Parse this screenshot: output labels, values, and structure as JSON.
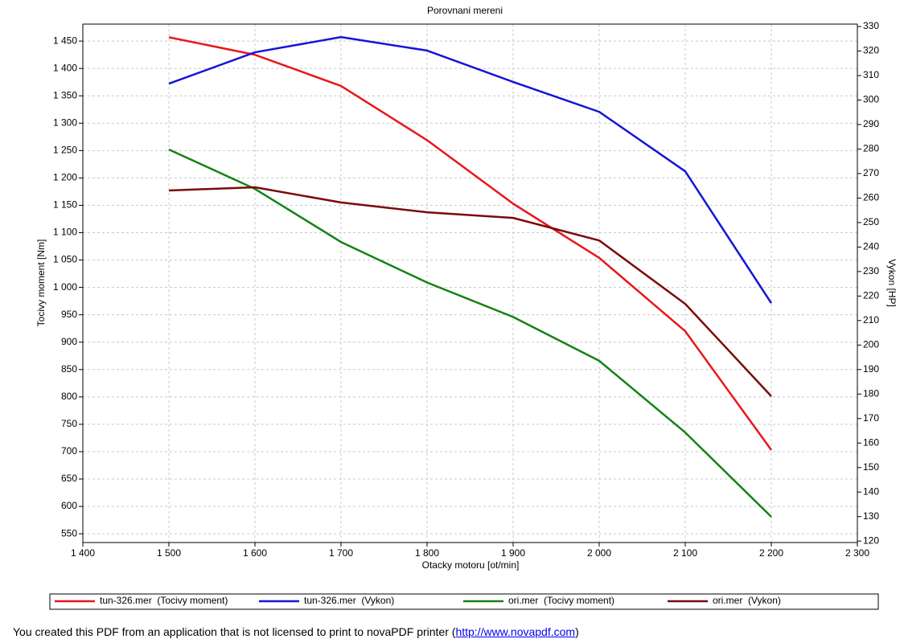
{
  "chart_data": {
    "type": "line",
    "title": "Porovnani mereni",
    "x_label": "Otacky motoru [ot/min]",
    "y_label": "Tocivy moment [Nm]",
    "y2_label": "Vykon [HP]",
    "x": [
      1500,
      1600,
      1700,
      1800,
      1900,
      2000,
      2100,
      2200
    ],
    "xlim": [
      1400,
      2300
    ],
    "xticks": [
      {
        "value": 1400,
        "label": "1 400"
      },
      {
        "value": 1500,
        "label": "1 500"
      },
      {
        "value": 1600,
        "label": "1 600"
      },
      {
        "value": 1700,
        "label": "1 700"
      },
      {
        "value": 1800,
        "label": "1 800"
      },
      {
        "value": 1900,
        "label": "1 900"
      },
      {
        "value": 2000,
        "label": "2 000"
      },
      {
        "value": 2100,
        "label": "2 100"
      },
      {
        "value": 2200,
        "label": "2 200"
      },
      {
        "value": 2300,
        "label": "2 300"
      }
    ],
    "ylim": [
      534,
      1481
    ],
    "yticks": [
      550,
      600,
      650,
      700,
      750,
      800,
      850,
      900,
      950,
      {
        "value": 1000,
        "label": "1 000"
      },
      {
        "value": 1050,
        "label": "1 050"
      },
      {
        "value": 1100,
        "label": "1 100"
      },
      {
        "value": 1150,
        "label": "1 150"
      },
      {
        "value": 1200,
        "label": "1 200"
      },
      {
        "value": 1250,
        "label": "1 250"
      },
      {
        "value": 1300,
        "label": "1 300"
      },
      {
        "value": 1350,
        "label": "1 350"
      },
      {
        "value": 1400,
        "label": "1 400"
      },
      {
        "value": 1450,
        "label": "1 450"
      }
    ],
    "y2lim": [
      119.4,
      331
    ],
    "y2ticks": [
      120,
      130,
      140,
      150,
      160,
      170,
      180,
      190,
      200,
      210,
      220,
      230,
      240,
      250,
      260,
      270,
      280,
      290,
      300,
      310,
      320,
      330
    ],
    "grid": true,
    "series": [
      {
        "name": "tun-326.mer  (Tocivy moment)",
        "color": "#e8171c",
        "values": [
          1457,
          1425,
          1368,
          1269,
          1153,
          1054,
          920,
          703
        ]
      },
      {
        "name": "tun-326.mer  (Vykon)",
        "color": "#1515d8",
        "axis": "y2",
        "values": [
          306.7,
          319.5,
          325.7,
          320.2,
          307.4,
          295.2,
          270.9,
          217.1
        ]
      },
      {
        "name": "ori.mer  (Tocivy moment)",
        "color": "#158215",
        "values": [
          1252,
          1180,
          1083,
          1009,
          946,
          866,
          735,
          581
        ]
      },
      {
        "name": "ori.mer  (Vykon)",
        "color": "#7a0a0a",
        "axis": "y2",
        "values": [
          263.1,
          264.4,
          258.2,
          254.2,
          251.9,
          242.7,
          216.8,
          179.1
        ]
      }
    ]
  },
  "footer": {
    "text_before": "You created this PDF from an application that is not licensed to print to novaPDF printer (",
    "link": "http://www.novapdf.com",
    "text_after": ")"
  }
}
